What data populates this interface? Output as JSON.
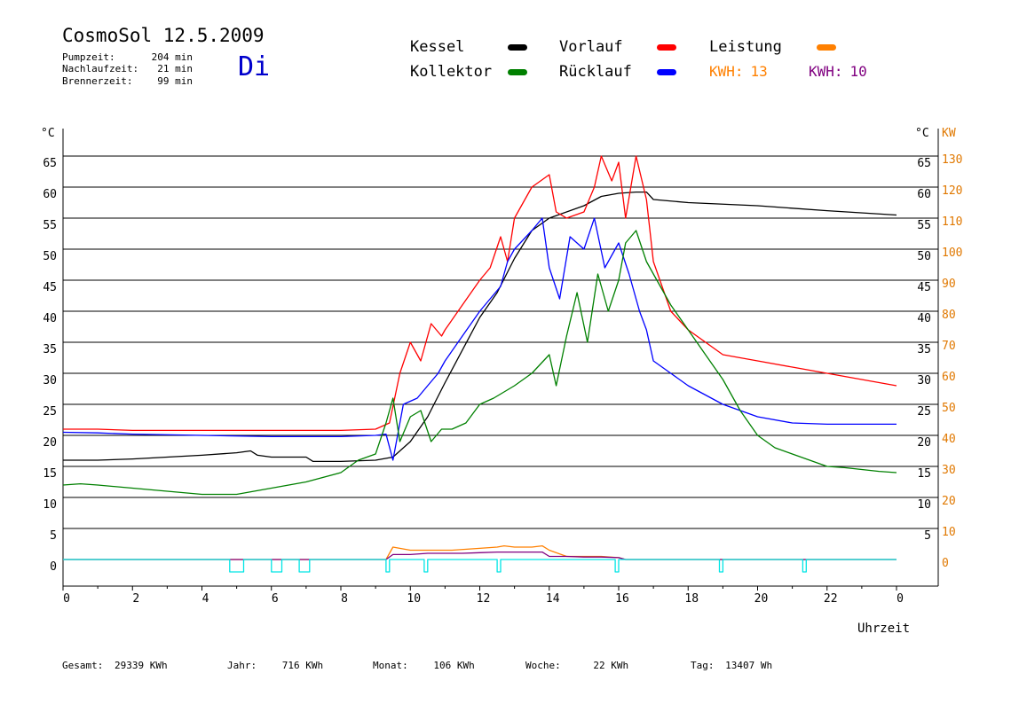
{
  "header": {
    "title": "CosmoSol 12.5.2009",
    "day": "Di",
    "stats": [
      {
        "label": "Pumpzeit:",
        "value": "204 min"
      },
      {
        "label": "Nachlaufzeit:",
        "value": "21 min"
      },
      {
        "label": "Brennerzeit:",
        "value": "99 min"
      }
    ]
  },
  "legend": {
    "items": [
      {
        "label": "Kessel",
        "color": "#000000"
      },
      {
        "label": "Vorlauf",
        "color": "#ff0000"
      },
      {
        "label": "Leistung",
        "color": "#ff8000"
      },
      {
        "label": "Kollektor",
        "color": "#008000"
      },
      {
        "label": "Rücklauf",
        "color": "#0000ff"
      }
    ],
    "kwh": [
      {
        "label": "KWH:",
        "value": "13",
        "color": "#ff8000"
      },
      {
        "label": "KWH:",
        "value": "10",
        "color": "#800080"
      }
    ]
  },
  "footer": {
    "items": [
      {
        "label": "Gesamt:",
        "value": "29339 KWh"
      },
      {
        "label": "Jahr:",
        "value": "716 KWh"
      },
      {
        "label": "Monat:",
        "value": "106 KWh"
      },
      {
        "label": "Woche:",
        "value": "22 KWh"
      },
      {
        "label": "Tag:",
        "value": "13407 Wh"
      }
    ]
  },
  "chart_data": {
    "type": "line",
    "xlabel": "Uhrzeit",
    "ylabel_left": "°C",
    "ylabel_right_1": "°C",
    "ylabel_right_2": "KW",
    "xlim": [
      0,
      24
    ],
    "ylim": [
      -4,
      70
    ],
    "grid": true,
    "x_ticks": [
      "0",
      "2",
      "4",
      "6",
      "8",
      "10",
      "12",
      "14",
      "16",
      "18",
      "20",
      "22",
      "0"
    ],
    "y_ticks": [
      0,
      5,
      10,
      15,
      20,
      25,
      30,
      35,
      40,
      45,
      50,
      55,
      60,
      65
    ],
    "y_tick_labels_left": [
      "0",
      "5",
      "10",
      "15",
      "20",
      "25",
      "30",
      "35",
      "40",
      "45",
      "50",
      "55",
      "60",
      "65"
    ],
    "y_tick_labels_right_1": [
      "",
      "5",
      "10",
      "15",
      "20",
      "25",
      "30",
      "35",
      "40",
      "45",
      "50",
      "55",
      "60",
      "65"
    ],
    "y_tick_labels_right_2": [
      "0",
      "10",
      "20",
      "30",
      "40",
      "50",
      "60",
      "70",
      "80",
      "90",
      "100",
      "110",
      "120",
      "130"
    ],
    "series": [
      {
        "name": "Kessel",
        "color": "#000000",
        "x": [
          0,
          1,
          2,
          3,
          4,
          5,
          5.4,
          5.6,
          6,
          7,
          7.2,
          8,
          9,
          9.5,
          10,
          10.5,
          11,
          12,
          12.5,
          13,
          13.5,
          14,
          15,
          15.5,
          16,
          16.5,
          16.8,
          17,
          18,
          20,
          22,
          24
        ],
        "y": [
          16,
          16,
          16.2,
          16.5,
          16.8,
          17.2,
          17.5,
          16.8,
          16.5,
          16.5,
          15.8,
          15.8,
          16,
          16.5,
          19,
          23,
          28.5,
          39,
          43,
          48.5,
          53,
          55,
          57,
          58.5,
          59,
          59.2,
          59.2,
          58,
          57.5,
          57,
          56.2,
          55.5
        ]
      },
      {
        "name": "Vorlauf",
        "color": "#ff0000",
        "x": [
          0,
          1,
          2,
          4,
          6,
          8,
          9,
          9.4,
          9.7,
          10,
          10.3,
          10.6,
          10.9,
          11,
          11.5,
          12,
          12.3,
          12.6,
          12.8,
          13,
          13.5,
          14,
          14.2,
          14.5,
          15,
          15.3,
          15.5,
          15.8,
          16,
          16.2,
          16.5,
          16.8,
          17,
          17.5,
          18,
          19,
          20,
          21,
          22,
          23,
          24
        ],
        "y": [
          21,
          21,
          20.8,
          20.8,
          20.8,
          20.8,
          21,
          22,
          30,
          35,
          32,
          38,
          36,
          37,
          41,
          45,
          47,
          52,
          48,
          55,
          60,
          62,
          56,
          55,
          56,
          60,
          65,
          61,
          64,
          55,
          65,
          58,
          48,
          40,
          37,
          33,
          32,
          31,
          30,
          29,
          28
        ]
      },
      {
        "name": "Rücklauf",
        "color": "#0000ff",
        "x": [
          0,
          1,
          2,
          4,
          6,
          8,
          9,
          9.3,
          9.5,
          9.8,
          10.2,
          10.5,
          10.8,
          11,
          11.5,
          12,
          12.3,
          12.6,
          12.8,
          13,
          13.5,
          13.8,
          14,
          14.3,
          14.6,
          15,
          15.3,
          15.6,
          16,
          16.3,
          16.6,
          16.8,
          17,
          17.5,
          18,
          19,
          20,
          21,
          22,
          23,
          24
        ],
        "y": [
          20.5,
          20.4,
          20.2,
          20,
          19.8,
          19.8,
          20,
          20.2,
          16,
          25,
          26,
          28,
          30,
          32,
          36,
          40,
          42,
          44,
          48,
          50,
          53,
          55,
          47,
          42,
          52,
          50,
          55,
          47,
          51,
          46,
          40,
          37,
          32,
          30,
          28,
          25,
          23,
          22,
          21.8,
          21.8,
          21.8
        ]
      },
      {
        "name": "Kollektor",
        "color": "#008000",
        "x": [
          0,
          0.5,
          1,
          2,
          3,
          4,
          5,
          6,
          7,
          8,
          8.5,
          9,
          9.3,
          9.5,
          9.7,
          10,
          10.3,
          10.6,
          10.9,
          11.2,
          11.6,
          12,
          12.4,
          12.7,
          13,
          13.5,
          14,
          14.2,
          14.5,
          14.8,
          15.1,
          15.4,
          15.7,
          16,
          16.2,
          16.5,
          16.8,
          17,
          17.5,
          18,
          18.5,
          19,
          19.5,
          20,
          20.5,
          21,
          21.5,
          22,
          22.5,
          23,
          23.5,
          24
        ],
        "y": [
          12,
          12.2,
          12,
          11.5,
          11,
          10.5,
          10.5,
          11.5,
          12.5,
          14,
          16,
          17,
          22,
          26,
          19,
          23,
          24,
          19,
          21,
          21,
          22,
          25,
          26,
          27,
          28,
          30,
          33,
          28,
          36,
          43,
          35,
          46,
          40,
          45,
          51,
          53,
          48,
          46,
          41,
          37,
          33,
          29,
          24,
          20,
          18,
          17,
          16,
          15,
          14.8,
          14.5,
          14.2,
          14
        ]
      },
      {
        "name": "Leistung",
        "color": "#ff8000",
        "x": [
          0,
          9.3,
          9.5,
          10,
          10.5,
          11,
          11.2,
          12,
          12.5,
          12.7,
          13,
          13.5,
          13.8,
          14,
          14.5,
          15,
          15.5,
          16,
          16.2,
          16.3,
          24
        ],
        "y": [
          0,
          0,
          2,
          1.5,
          1.5,
          1.5,
          1.5,
          1.8,
          2,
          2.2,
          2,
          2,
          2.2,
          1.5,
          0.5,
          0.5,
          0.5,
          0.3,
          0,
          0,
          0
        ]
      },
      {
        "name": "KWH 10",
        "color": "#800080",
        "x": [
          0,
          9.3,
          9.5,
          10,
          10.5,
          11,
          11.5,
          12,
          12.5,
          12.8,
          13,
          13.5,
          13.8,
          14,
          14.5,
          15,
          15.5,
          16,
          16.2,
          16.3,
          24
        ],
        "y": [
          0,
          0,
          0.8,
          0.8,
          1,
          1,
          1,
          1.1,
          1.2,
          1.2,
          1.2,
          1.2,
          1.2,
          0.5,
          0.5,
          0.4,
          0.4,
          0.3,
          0,
          0,
          0
        ]
      },
      {
        "name": "Pumpe",
        "color": "#00e5e5",
        "x": [
          0,
          4.8,
          4.8,
          5.2,
          5.2,
          6,
          6,
          6.3,
          6.3,
          6.8,
          6.8,
          7.1,
          7.1,
          9.3,
          9.3,
          9.4,
          9.4,
          10.4,
          10.4,
          10.5,
          10.5,
          12.5,
          12.5,
          12.6,
          12.6,
          15.9,
          15.9,
          16,
          16,
          18.9,
          18.9,
          19,
          19,
          21.3,
          21.3,
          21.4,
          21.4,
          24
        ],
        "y": [
          0,
          0,
          -2,
          -2,
          0,
          0,
          -2,
          -2,
          0,
          0,
          -2,
          -2,
          0,
          0,
          -2,
          -2,
          0,
          0,
          -2,
          -2,
          0,
          0,
          -2,
          -2,
          0,
          0,
          -2,
          -2,
          0,
          0,
          -2,
          -2,
          0,
          0,
          -2,
          -2,
          0,
          0
        ]
      }
    ]
  }
}
